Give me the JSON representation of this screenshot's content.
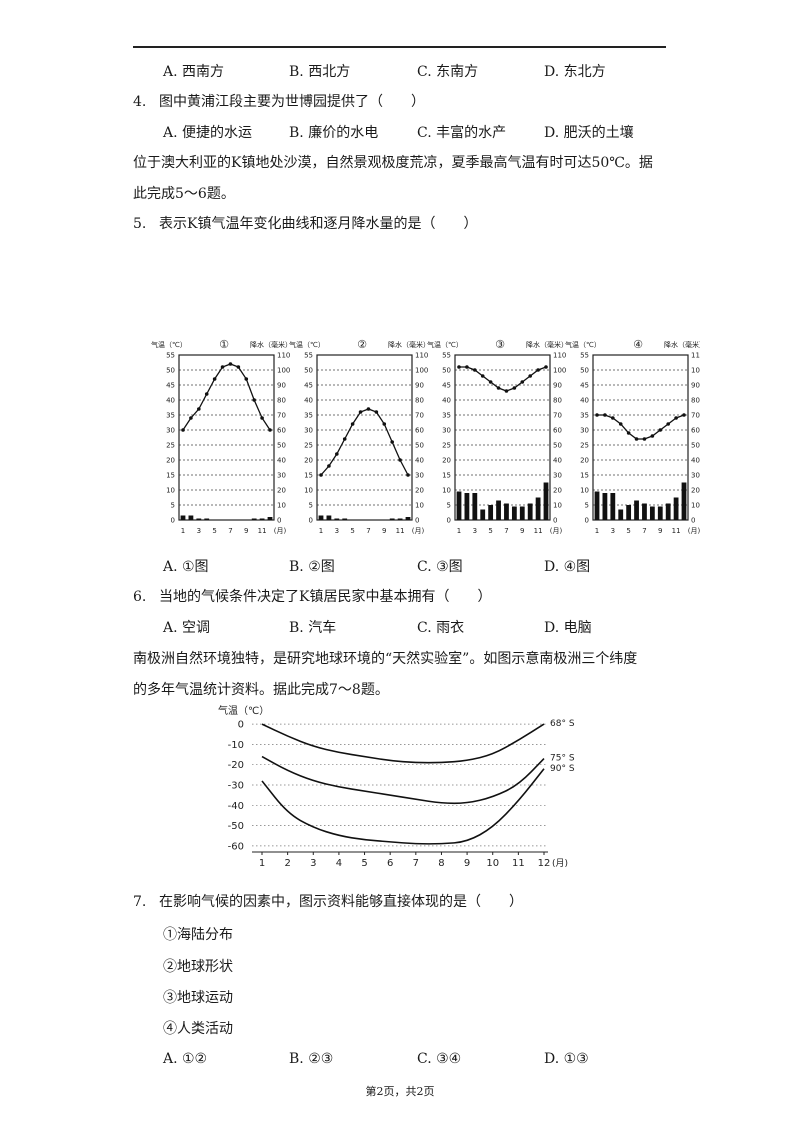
{
  "options_prev": {
    "a": "A. 西南方",
    "b": "B. 西北方",
    "c": "C. 东南方",
    "d": "D. 东北方"
  },
  "q4": {
    "num": "4.",
    "text": "图中黄浦江段主要为世博园提供了（　　）",
    "a": "A. 便捷的水运",
    "b": "B. 廉价的水电",
    "c": "C. 丰富的水产",
    "d": "D. 肥沃的土壤"
  },
  "intro_k": {
    "line1": "位于澳大利亚的K镇地处沙漠，自然景观极度荒凉，夏季最高气温有时可达50℃。据",
    "line2": "此完成5～6题。"
  },
  "q5": {
    "num": "5.",
    "text": "表示K镇气温年变化曲线和逐月降水量的是（　　）",
    "a": "A. ①图",
    "b": "B. ②图",
    "c": "C. ③图",
    "d": "D. ④图"
  },
  "q6": {
    "num": "6.",
    "text": "当地的气候条件决定了K镇居民家中基本拥有（　　）",
    "a": "A. 空调",
    "b": "B. 汽车",
    "c": "C. 雨衣",
    "d": "D. 电脑"
  },
  "intro_ant": {
    "line1": "南极洲自然环境独特，是研究地球环境的“天然实验室”。如图示意南极洲三个纬度",
    "line2": "的多年气温统计资料。据此完成7～8题。"
  },
  "q7": {
    "num": "7.",
    "text": "在影响气候的因素中，图示资料能够直接体现的是（　　）",
    "items": [
      "①海陆分布",
      "②地球形状",
      "③地球运动",
      "④人类活动"
    ],
    "a": "A. ①②",
    "b": "B. ②③",
    "c": "C. ③④",
    "d": "D. ①③"
  },
  "footer": "第2页，共2页",
  "chart_data": [
    {
      "type": "line+bar",
      "panel": "①",
      "left_axis": "气温（℃）",
      "right_axis": "降水（毫米）",
      "ylim_temp": [
        0,
        55
      ],
      "ylim_precip": [
        0,
        110
      ],
      "x_ticks": [
        "1",
        "3",
        "5",
        "7",
        "9",
        "11",
        "(月)"
      ],
      "temp_ticks": [
        "0",
        "5",
        "10",
        "15",
        "20",
        "25",
        "30",
        "35",
        "40",
        "45",
        "50",
        "55"
      ],
      "precip_ticks": [
        "0",
        "10",
        "20",
        "30",
        "40",
        "50",
        "60",
        "70",
        "80",
        "90",
        "100",
        "110"
      ],
      "months": [
        1,
        2,
        3,
        4,
        5,
        6,
        7,
        8,
        9,
        10,
        11,
        12
      ],
      "temperature": [
        30,
        34,
        37,
        42,
        47,
        51,
        52,
        51,
        47,
        40,
        34,
        30
      ],
      "precipitation": [
        3,
        3,
        1,
        1,
        0,
        0,
        0,
        0,
        0,
        1,
        1,
        2
      ]
    },
    {
      "type": "line+bar",
      "panel": "②",
      "left_axis": "气温（℃）",
      "right_axis": "降水（毫米）",
      "ylim_temp": [
        0,
        55
      ],
      "ylim_precip": [
        0,
        110
      ],
      "x_ticks": [
        "1",
        "3",
        "5",
        "7",
        "9",
        "11",
        "(月)"
      ],
      "temp_ticks": [
        "0",
        "5",
        "10",
        "15",
        "20",
        "25",
        "30",
        "35",
        "40",
        "45",
        "50",
        "55"
      ],
      "precip_ticks": [
        "0",
        "10",
        "20",
        "30",
        "40",
        "50",
        "60",
        "70",
        "80",
        "90",
        "100",
        "110"
      ],
      "months": [
        1,
        2,
        3,
        4,
        5,
        6,
        7,
        8,
        9,
        10,
        11,
        12
      ],
      "temperature": [
        15,
        18,
        22,
        27,
        32,
        36,
        37,
        36,
        32,
        26,
        20,
        15
      ],
      "precipitation": [
        3,
        3,
        1,
        1,
        0,
        0,
        0,
        0,
        0,
        1,
        1,
        2
      ]
    },
    {
      "type": "line+bar",
      "panel": "③",
      "left_axis": "气温（℃）",
      "right_axis": "降水（毫米）",
      "ylim_temp": [
        0,
        55
      ],
      "ylim_precip": [
        0,
        110
      ],
      "x_ticks": [
        "1",
        "3",
        "5",
        "7",
        "9",
        "11",
        "(月)"
      ],
      "temp_ticks": [
        "0",
        "5",
        "10",
        "15",
        "20",
        "25",
        "30",
        "35",
        "40",
        "45",
        "50",
        "55"
      ],
      "precip_ticks": [
        "0",
        "10",
        "20",
        "30",
        "40",
        "50",
        "60",
        "70",
        "80",
        "90",
        "100",
        "110"
      ],
      "months": [
        1,
        2,
        3,
        4,
        5,
        6,
        7,
        8,
        9,
        10,
        11,
        12
      ],
      "temperature": [
        51,
        51,
        50,
        48,
        46,
        44,
        43,
        44,
        46,
        48,
        50,
        51
      ],
      "precipitation": [
        19,
        18,
        18,
        7,
        10,
        13,
        11,
        9,
        9,
        11,
        15,
        25
      ]
    },
    {
      "type": "line+bar",
      "panel": "④",
      "left_axis": "气温（℃）",
      "right_axis": "降水（毫米）",
      "ylim_temp": [
        0,
        55
      ],
      "ylim_precip": [
        0,
        110
      ],
      "x_ticks": [
        "1",
        "3",
        "5",
        "7",
        "9",
        "11",
        "(月)"
      ],
      "temp_ticks": [
        "0",
        "5",
        "10",
        "15",
        "20",
        "25",
        "30",
        "35",
        "40",
        "45",
        "50",
        "55"
      ],
      "precip_ticks": [
        "0",
        "10",
        "20",
        "30",
        "40",
        "50",
        "60",
        "70",
        "80",
        "90",
        "100",
        "110"
      ],
      "months": [
        1,
        2,
        3,
        4,
        5,
        6,
        7,
        8,
        9,
        10,
        11,
        12
      ],
      "temperature": [
        35,
        35,
        34,
        32,
        29,
        27,
        27,
        28,
        30,
        32,
        34,
        35
      ],
      "precipitation": [
        19,
        18,
        18,
        7,
        10,
        13,
        11,
        9,
        9,
        11,
        15,
        25
      ]
    },
    {
      "type": "line",
      "ylabel": "气温（℃）",
      "x_unit": "(月)",
      "x": [
        1,
        2,
        3,
        4,
        5,
        6,
        7,
        8,
        9,
        10,
        11,
        12
      ],
      "y_ticks": [
        0,
        -10,
        -20,
        -30,
        -40,
        -50,
        -60
      ],
      "ylim": [
        -63,
        3
      ],
      "series": [
        {
          "name": "68° S",
          "values": [
            0,
            -6,
            -11,
            -14,
            -16,
            -18,
            -19,
            -19,
            -18,
            -15,
            -8,
            0
          ]
        },
        {
          "name": "75° S",
          "values": [
            -16,
            -23,
            -28,
            -31,
            -33,
            -35,
            -37,
            -39,
            -39,
            -36,
            -30,
            -17
          ]
        },
        {
          "name": "90° S",
          "values": [
            -28,
            -44,
            -51,
            -55,
            -57,
            -58,
            -59,
            -59,
            -58,
            -51,
            -38,
            -22
          ]
        }
      ]
    }
  ]
}
